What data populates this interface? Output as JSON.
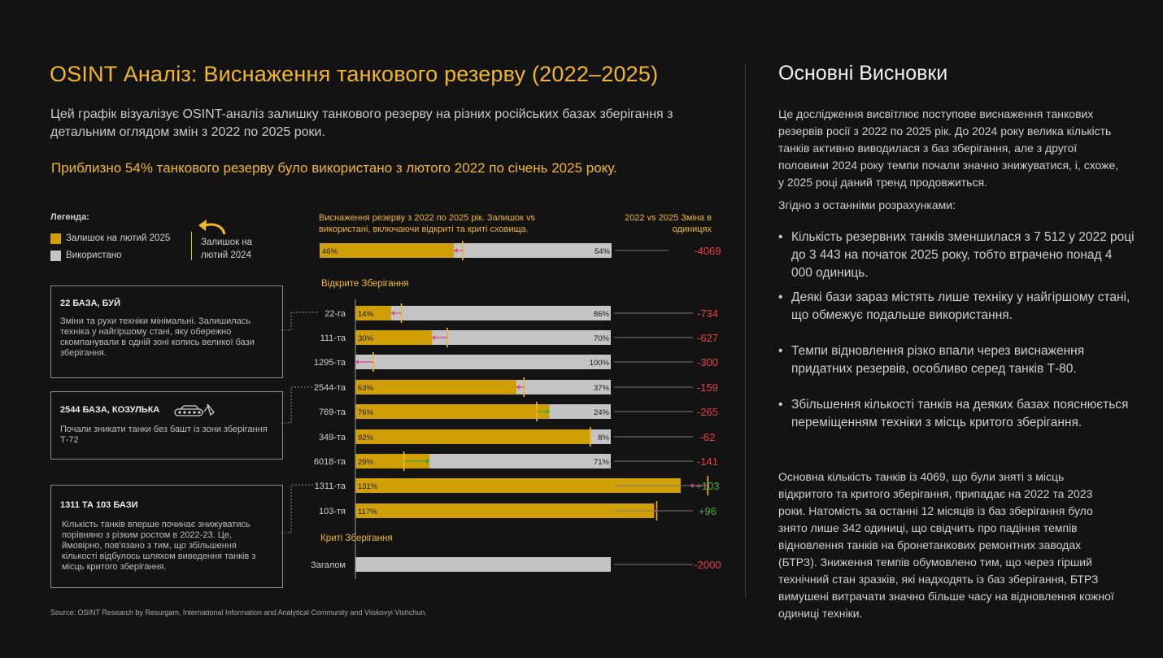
{
  "header": {
    "title": "OSINT Аналіз: Виснаження танкового резерву (2022–2025)",
    "description": "Цей графік візуалізує OSINT-аналіз залишку танкового резерву на різних російських базах зберігання з детальним оглядом змін з 2022 по 2025 роки.",
    "highlight": "Приблизно 54% танкового резерву було використано з лютого 2022 по січень 2025 року."
  },
  "legend": {
    "title": "Легенда:",
    "remaining_label": "Залишок на лютий 2025",
    "used_label": "Використано",
    "marker_label": "Залишок на лютий 2024"
  },
  "notes": [
    {
      "title": "22 БАЗА, БУЙ",
      "text": "Зміни та рухи техніки мінімальні. Залишилась техніка у найгіршому стані, яку обережно скомпанували в одній зоні колись великої бази зберігання."
    },
    {
      "title": "2544 БАЗА, КОЗУЛЬКА",
      "text": "Почали зникати танки без башт із зони зберігання Т-72"
    },
    {
      "title": "1311 ТА 103 БАЗИ",
      "text": "Кількість танків вперше починає знижуватись порівняно з різким ростом в 2022-23. Це, ймовірно, пов'язано з тим, що збільшення кількості відбулось шляхом виведення танків з місць критого зберігання."
    }
  ],
  "chart_header": {
    "left": "Виснаження резерву з 2022 по 2025 рік. Залишок vs використані, включаючи відкриті та криті сховища.",
    "right": "2022 vs 2025 Зміна в одиницях"
  },
  "sections": {
    "open": "Відкрите Зберігання",
    "covered": "Криті Зберігання"
  },
  "source": "Source: OSINT Research by Resurgam, International Information and Analytical Community and Viiskovyi Vishchun.",
  "colors": {
    "accent": "#f2b728",
    "remaining": "#cf9f05",
    "used": "#c4c4c4",
    "negative": "#e8404a",
    "positive": "#3fae49",
    "arrow_down": "#d9468f",
    "arrow_up": "#3aa33a"
  },
  "chart_data": {
    "type": "bar",
    "orientation": "horizontal",
    "stacked": true,
    "series": [
      {
        "name": "Залишок на лютий 2025"
      },
      {
        "name": "Використано"
      }
    ],
    "x_range_percent": [
      0,
      100
    ],
    "total": {
      "remaining_pct": 46,
      "used_pct": 54,
      "marker_2024_pct": 49,
      "remaining_label": "46%",
      "used_label": "54%",
      "change": "-4069",
      "change_sign": "neg"
    },
    "open_storage": [
      {
        "name": "22-га",
        "remaining_pct": 14,
        "marker_2024_pct": 18,
        "remaining_label": "14%",
        "used_label": "86%",
        "change": "-734",
        "change_sign": "neg"
      },
      {
        "name": "111-та",
        "remaining_pct": 30,
        "marker_2024_pct": 36,
        "remaining_label": "30%",
        "used_label": "70%",
        "change": "-627",
        "change_sign": "neg"
      },
      {
        "name": "1295-та",
        "remaining_pct": 0,
        "marker_2024_pct": 7,
        "remaining_label": "",
        "used_label": "100%",
        "change": "-300",
        "change_sign": "neg"
      },
      {
        "name": "2544-та",
        "remaining_pct": 63,
        "marker_2024_pct": 66,
        "remaining_label": "63%",
        "used_label": "37%",
        "change": "-159",
        "change_sign": "neg"
      },
      {
        "name": "769-та",
        "remaining_pct": 76,
        "marker_2024_pct": 71,
        "remaining_label": "76%",
        "used_label": "24%",
        "change": "-265",
        "change_sign": "neg"
      },
      {
        "name": "349-та",
        "remaining_pct": 92,
        "marker_2024_pct": 92,
        "remaining_label": "92%",
        "used_label": "8%",
        "change": "-62",
        "change_sign": "neg"
      },
      {
        "name": "6018-та",
        "remaining_pct": 29,
        "marker_2024_pct": 19,
        "remaining_label": "29%",
        "used_label": "71%",
        "change": "-141",
        "change_sign": "neg"
      },
      {
        "name": "1311-та",
        "remaining_pct": 131,
        "marker_2024_pct": 138,
        "remaining_label": "131%",
        "used_label": "",
        "change": "+103",
        "change_sign": "pos"
      },
      {
        "name": "103-тя",
        "remaining_pct": 117,
        "marker_2024_pct": 118,
        "remaining_label": "117%",
        "used_label": "",
        "change": "+96",
        "change_sign": "pos"
      }
    ],
    "covered_storage": [
      {
        "name": "Загалом",
        "remaining_pct": 0,
        "remaining_label": "",
        "used_label": "",
        "change": "-2000",
        "change_sign": "neg"
      }
    ]
  },
  "conclusions": {
    "title": "Основні Висновки",
    "intro": "Це дослідження висвітлює поступове виснаження танкових резервів росії з 2022 по 2025 рік. До 2024 року велика кількість танків активно виводилася з баз зберігання, але з другої половини 2024 року темпи почали значно знижуватися, і, схоже, у 2025 році даний тренд продовжиться.",
    "calc": "Згідно з останніми розрахунками:",
    "bullets": [
      "Кількість резервних танків зменшилася з 7 512 у 2022 році до 3 443 на початок 2025 року, тобто втрачено понад 4 000 одиниць.",
      "Деякі бази зараз містять лише техніку у найгіршому стані, що обмежує подальше використання.",
      "Темпи відновлення різко впали через виснаження придатних резервів, особливо серед танків Т-80.",
      "Збільшення кількості танків на деяких базах пояснюється переміщенням техніки з місць критого зберігання."
    ],
    "closing": "Основна кількість танків із 4069, що були зняті з місць відкритого та критого зберігання, припадає на 2022 та 2023 роки. Натомість за останні 12 місяців із баз зберігання було знято лише 342 одиниці, що свідчить про падіння темпів відновлення танків на бронетанкових ремонтних заводах (БТРЗ). Зниження темпів обумовлено тим, що через гірший технічний стан зразків, які надходять із баз зберігання, БТРЗ вимушені витрачати значно більше часу на відновлення кожної одиниці техніки."
  }
}
